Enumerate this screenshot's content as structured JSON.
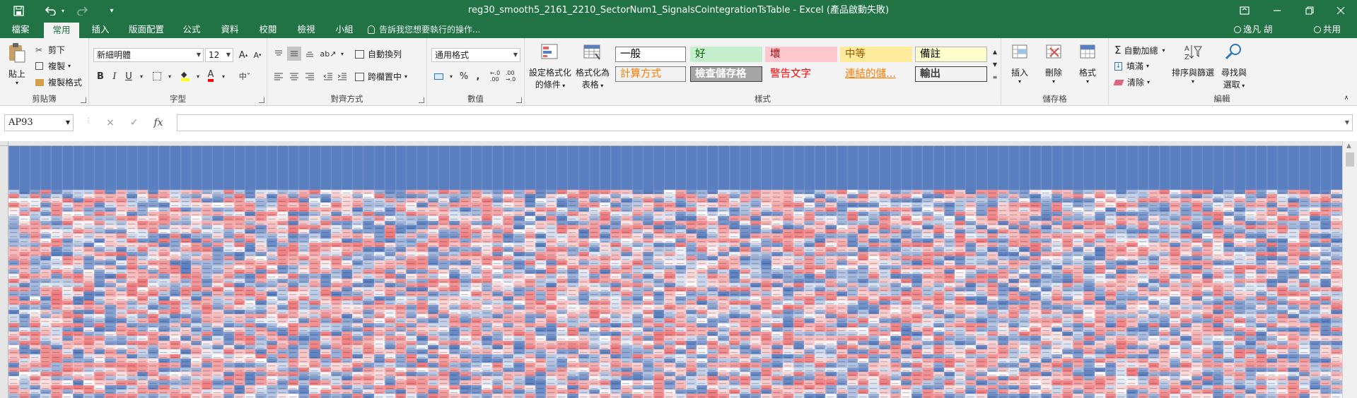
{
  "window": {
    "title": "reg30_smooth5_2161_2210_SectorNum1_SignalsCointegrationTsTable - Excel (產品啟動失敗)",
    "quick_access": {
      "save": "save-icon",
      "undo": "undo-icon",
      "redo": "redo-icon",
      "customize": "customize-qat-icon"
    }
  },
  "tabs": [
    "檔案",
    "常用",
    "插入",
    "版面配置",
    "公式",
    "資料",
    "校閱",
    "檢視",
    "小組"
  ],
  "active_tab": "常用",
  "tell_me": "告訴我您想要執行的操作...",
  "user": {
    "name": "逸凡 胡",
    "share": "共用"
  },
  "ribbon": {
    "clipboard": {
      "label": "剪貼簿",
      "paste": "貼上",
      "cut": "剪下",
      "copy": "複製",
      "format_painter": "複製格式"
    },
    "font": {
      "label": "字型",
      "name": "新細明體",
      "size": "12"
    },
    "alignment": {
      "label": "對齊方式",
      "wrap": "自動換列",
      "merge": "跨欄置中"
    },
    "number": {
      "label": "數值",
      "format": "通用格式"
    },
    "styles": {
      "label": "樣式",
      "conditional": [
        "設定格式化",
        "的條件"
      ],
      "as_table": [
        "格式化為",
        "表格"
      ],
      "cells": [
        {
          "text": "一般",
          "bg": "#ffffff",
          "color": "#000000",
          "border": "#7f7f7f"
        },
        {
          "text": "好",
          "bg": "#c6efce",
          "color": "#006100",
          "border": "#c6efce"
        },
        {
          "text": "壞",
          "bg": "#ffc7ce",
          "color": "#9c0006",
          "border": "#ffc7ce"
        },
        {
          "text": "中等",
          "bg": "#ffeb9c",
          "color": "#9c5700",
          "border": "#ffeb9c"
        },
        {
          "text": "備註",
          "bg": "#ffffcc",
          "color": "#000000",
          "border": "#b2b2b2"
        },
        {
          "text": "計算方式",
          "bg": "#f2f2f2",
          "color": "#fa7d00",
          "border": "#7f7f7f"
        },
        {
          "text": "檢查儲存格",
          "bg": "#a5a5a5",
          "color": "#ffffff",
          "border": "#3f3f3f"
        },
        {
          "text": "警告文字",
          "bg": "#f3f3f3",
          "color": "#ff0000",
          "border": "#f3f3f3"
        },
        {
          "text": "連結的儲...",
          "bg": "#f3f3f3",
          "color": "#fa7d00",
          "border": "#f3f3f3"
        },
        {
          "text": "輸出",
          "bg": "#f2f2f2",
          "color": "#3f3f3f",
          "border": "#3f3f3f"
        }
      ]
    },
    "cells": {
      "label": "儲存格",
      "insert": "插入",
      "delete": "刪除",
      "format": "格式"
    },
    "editing": {
      "label": "編輯",
      "autosum": "自動加總",
      "fill": "填滿",
      "clear": "清除",
      "sort": [
        "排序與篩選"
      ],
      "find": [
        "尋找與",
        "選取"
      ]
    }
  },
  "name_box": "AP93",
  "formula_icons": {
    "cancel": "×",
    "enter": "✓",
    "fx": "fx"
  },
  "colors": {
    "accent": "#217346",
    "heat_blue": "#5a7fc0",
    "heat_red": "#f0797b",
    "heat_white": "#ffffff"
  }
}
